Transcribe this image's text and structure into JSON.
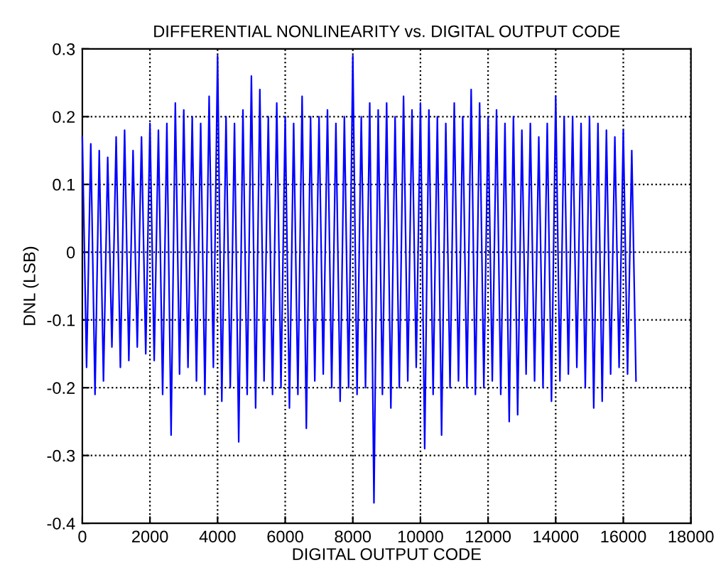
{
  "chart_data": {
    "type": "line",
    "title": "DIFFERENTIAL NONLINEARITY vs. DIGITAL OUTPUT CODE",
    "xlabel": "DIGITAL OUTPUT CODE",
    "ylabel": "DNL (LSB)",
    "series": [
      {
        "color": "#0000ff",
        "x": [
          0,
          125,
          250,
          375,
          500,
          625,
          750,
          875,
          1000,
          1125,
          1250,
          1375,
          1500,
          1625,
          1750,
          1875,
          2000,
          2125,
          2250,
          2375,
          2500,
          2625,
          2750,
          2875,
          3000,
          3125,
          3250,
          3375,
          3500,
          3625,
          3750,
          3875,
          4000,
          4125,
          4250,
          4375,
          4500,
          4625,
          4750,
          4875,
          5000,
          5125,
          5250,
          5375,
          5500,
          5625,
          5750,
          5875,
          6000,
          6125,
          6250,
          6375,
          6500,
          6625,
          6750,
          6875,
          7000,
          7125,
          7250,
          7375,
          7500,
          7625,
          7750,
          7875,
          8000,
          8125,
          8250,
          8375,
          8500,
          8625,
          8750,
          8875,
          9000,
          9125,
          9250,
          9375,
          9500,
          9625,
          9750,
          9875,
          10000,
          10125,
          10250,
          10375,
          10500,
          10625,
          10750,
          10875,
          11000,
          11125,
          11250,
          11375,
          11500,
          11625,
          11750,
          11875,
          12000,
          12125,
          12250,
          12375,
          12500,
          12625,
          12750,
          12875,
          13000,
          13125,
          13250,
          13375,
          13500,
          13625,
          13750,
          13875,
          14000,
          14125,
          14250,
          14375,
          14500,
          14625,
          14750,
          14875,
          15000,
          15125,
          15250,
          15375,
          15500,
          15625,
          15750,
          15875,
          16000,
          16125,
          16250,
          16375
        ],
        "values": [
          0.17,
          -0.17,
          0.16,
          -0.21,
          0.15,
          -0.19,
          0.14,
          -0.14,
          0.17,
          -0.17,
          0.18,
          -0.16,
          0.15,
          -0.14,
          0.17,
          -0.15,
          0.19,
          -0.16,
          0.18,
          -0.21,
          0.19,
          -0.27,
          0.22,
          -0.18,
          0.21,
          -0.17,
          0.2,
          -0.19,
          0.19,
          -0.21,
          0.23,
          -0.17,
          0.29,
          -0.22,
          0.2,
          -0.2,
          0.19,
          -0.28,
          0.21,
          -0.21,
          0.26,
          -0.23,
          0.24,
          -0.19,
          0.2,
          -0.21,
          0.22,
          -0.2,
          0.2,
          -0.23,
          0.19,
          -0.21,
          0.23,
          -0.26,
          0.2,
          -0.19,
          0.2,
          -0.18,
          0.21,
          -0.2,
          0.19,
          -0.22,
          0.2,
          -0.2,
          0.29,
          -0.21,
          0.2,
          -0.2,
          0.22,
          -0.37,
          0.21,
          -0.21,
          0.22,
          -0.23,
          0.2,
          -0.2,
          0.23,
          -0.19,
          0.21,
          -0.17,
          0.22,
          -0.29,
          0.21,
          -0.21,
          0.2,
          -0.27,
          0.19,
          -0.2,
          0.22,
          -0.19,
          0.2,
          -0.2,
          0.24,
          -0.21,
          0.22,
          -0.2,
          0.2,
          -0.19,
          0.21,
          -0.21,
          0.19,
          -0.25,
          0.2,
          -0.24,
          0.18,
          -0.18,
          0.19,
          -0.19,
          0.17,
          -0.2,
          0.19,
          -0.22,
          0.23,
          -0.19,
          0.2,
          -0.18,
          0.2,
          -0.17,
          0.19,
          -0.2,
          0.2,
          -0.23,
          0.19,
          -0.22,
          0.18,
          -0.18,
          0.17,
          -0.17,
          0.18,
          -0.18,
          0.15,
          -0.19
        ]
      }
    ],
    "xlim": [
      0,
      18000
    ],
    "xticks": [
      0,
      2000,
      4000,
      6000,
      8000,
      10000,
      12000,
      14000,
      16000,
      18000
    ],
    "ylim": [
      -0.4,
      0.3
    ],
    "yticks": [
      -0.4,
      -0.3,
      -0.2,
      -0.1,
      0,
      0.1,
      0.2,
      0.3
    ],
    "grid": true,
    "line_style": "solid",
    "marker": "none"
  }
}
